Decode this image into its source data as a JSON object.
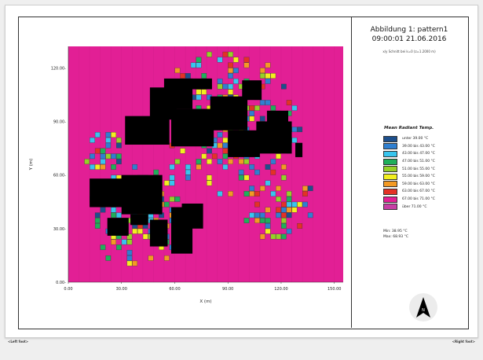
{
  "header": {
    "title": "Abbildung 1: pattern1",
    "datetime": "09:00:01 21.06.2016",
    "subtitle": "x/y Schnitt bei k=0 (z=1.2000 m)"
  },
  "legend": {
    "title": "Mean Radiant Temp.",
    "items": [
      {
        "label": "unter 39.00 °C",
        "color": "#1d4f8c"
      },
      {
        "label": "39.00 bis 43.00 °C",
        "color": "#2f7fd0"
      },
      {
        "label": "43.00 bis 47.00 °C",
        "color": "#38c5ee"
      },
      {
        "label": "47.00 bis 51.00 °C",
        "color": "#1faf5a"
      },
      {
        "label": "51.00 bis 55.00 °C",
        "color": "#95d128"
      },
      {
        "label": "55.00 bis 59.00 °C",
        "color": "#f2ef1f"
      },
      {
        "label": "59.00 bis 63.00 °C",
        "color": "#f39a24"
      },
      {
        "label": "63.00 bis 67.00 °C",
        "color": "#e33226"
      },
      {
        "label": "67.00 bis 71.00 °C",
        "color": "#e21f95"
      },
      {
        "label": "über 71.00 °C",
        "color": "#c73fa5"
      }
    ]
  },
  "stats": {
    "min": "Min: 38.95 °C",
    "max": "Max: 68.93 °C"
  },
  "footer": {
    "left": "<Left foot>",
    "right": "<Right foot>"
  },
  "north_arrow": {
    "label": "N"
  },
  "chart_data": {
    "type": "heatmap",
    "title": "Mean Radiant Temp.",
    "xlabel": "X (m)",
    "ylabel": "Y (m)",
    "xlim": [
      0,
      155
    ],
    "ylim": [
      0,
      132
    ],
    "xticks": [
      0,
      30,
      60,
      90,
      120,
      150
    ],
    "yticks": [
      0,
      30,
      60,
      90,
      120
    ],
    "xtick_labels": [
      "0.00",
      "30.00",
      "60.00",
      "90.00",
      "120.00",
      "150.00"
    ],
    "ytick_labels": [
      "0.00-",
      "30.00-",
      "60.00-",
      "90.00-",
      "120.00-"
    ],
    "cell_size": 3,
    "background_color": "#e21f95",
    "building_color": "#000000",
    "buildings": [
      [
        32,
        77,
        57,
        93
      ],
      [
        46,
        91,
        61,
        109
      ],
      [
        54,
        97,
        70,
        114
      ],
      [
        68,
        108,
        81,
        114
      ],
      [
        58,
        76,
        82,
        97
      ],
      [
        80,
        85,
        101,
        104
      ],
      [
        98,
        102,
        109,
        113
      ],
      [
        90,
        70,
        108,
        85
      ],
      [
        106,
        72,
        126,
        90
      ],
      [
        112,
        88,
        124,
        96
      ],
      [
        128,
        70,
        132,
        78
      ],
      [
        12,
        42,
        43,
        58
      ],
      [
        30,
        38,
        53,
        60
      ],
      [
        22,
        26,
        34,
        36
      ],
      [
        35,
        32,
        45,
        38
      ],
      [
        46,
        20,
        56,
        35
      ],
      [
        58,
        16,
        70,
        42
      ],
      [
        64,
        30,
        76,
        44
      ]
    ],
    "cool_zones": [
      {
        "center": [
          90,
          88
        ],
        "radius": 42,
        "density": 0.55
      },
      {
        "center": [
          38,
          36
        ],
        "radius": 30,
        "density": 0.6
      },
      {
        "center": [
          118,
          40
        ],
        "radius": 22,
        "density": 0.45
      },
      {
        "center": [
          20,
          70
        ],
        "radius": 14,
        "density": 0.5
      }
    ]
  }
}
